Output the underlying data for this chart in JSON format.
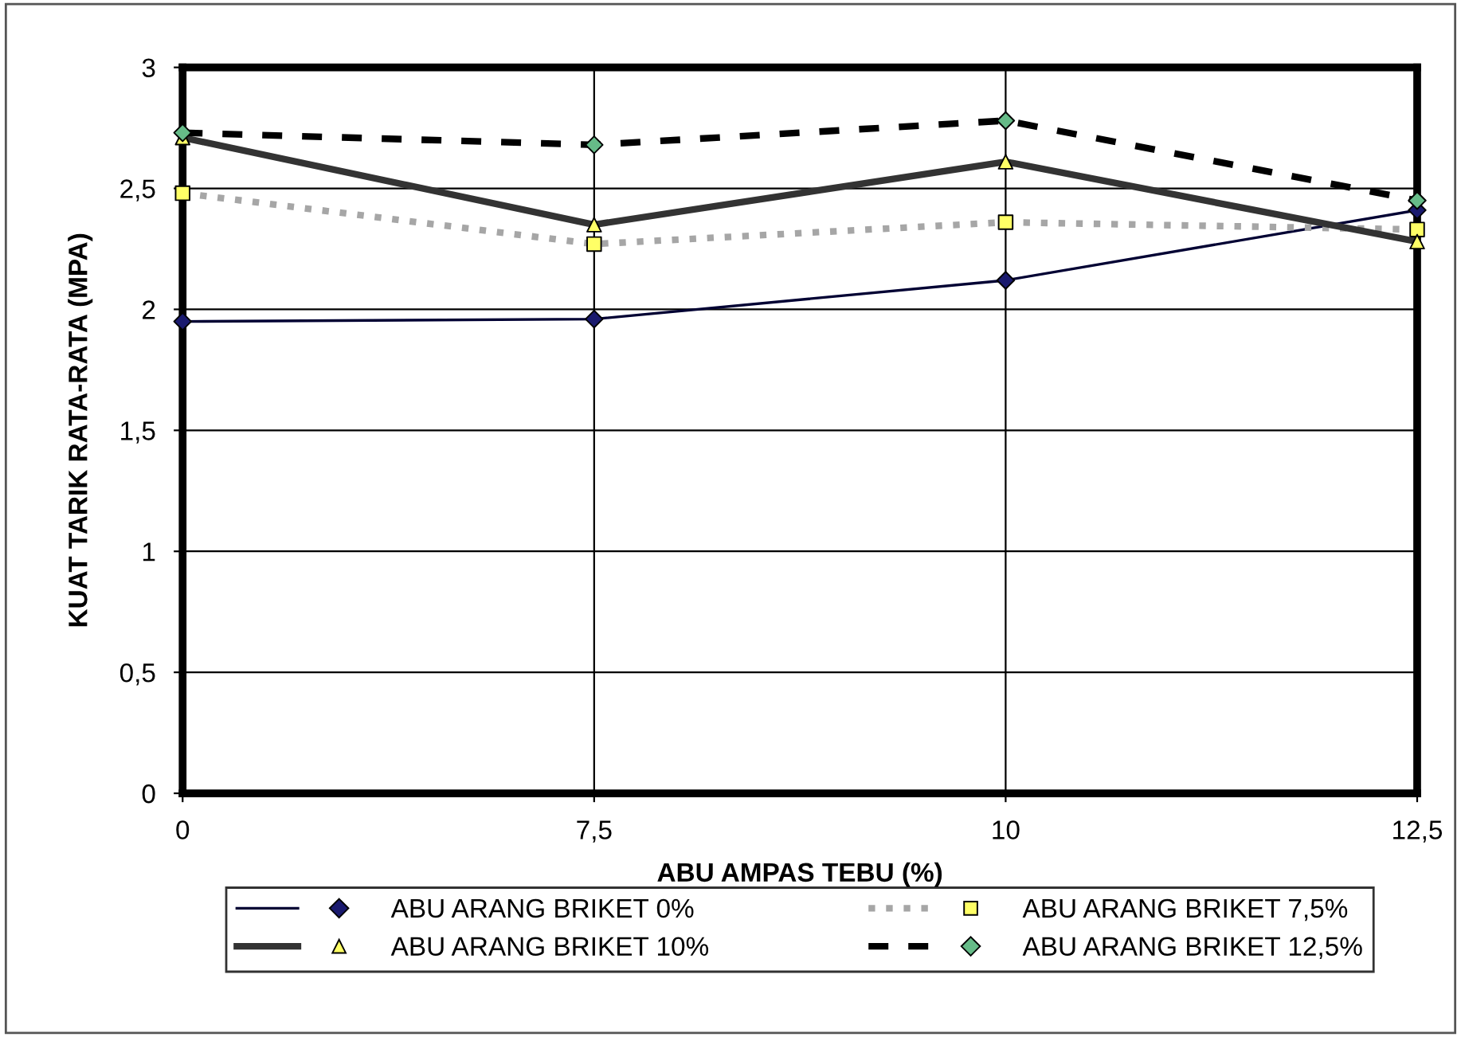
{
  "chart_data": {
    "type": "line",
    "xlabel": "ABU AMPAS TEBU (%)",
    "ylabel": "KUAT TARIK RATA-RATA (MPA)",
    "categories": [
      "0",
      "7,5",
      "10",
      "12,5"
    ],
    "ylim": [
      0,
      3
    ],
    "yticks": [
      0,
      {
        "value": 0.5,
        "label": "0,5"
      },
      1,
      {
        "value": 1.5,
        "label": "1,5"
      },
      2,
      {
        "value": 2.5,
        "label": "2,5"
      },
      3
    ],
    "grid": true,
    "legend": "bottom",
    "series": [
      {
        "name": "ABU ARANG BRIKET 0%",
        "color": "#000033",
        "colors": [
          "#1a1a6e",
          "#1a1a6e",
          "#1a1a6e",
          "#1a1a6e"
        ],
        "marker": "diamond",
        "line_style": "solid",
        "values": [
          1.95,
          1.96,
          2.12,
          2.41
        ]
      },
      {
        "name": "ABU ARANG BRIKET 7,5%",
        "color": "#a6a6a6",
        "colors": [
          "#ffff66",
          "#ffff66",
          "#ffff66",
          "#ffff66"
        ],
        "marker": "square",
        "line_style": "dotted",
        "values": [
          2.48,
          2.27,
          2.36,
          2.33
        ]
      },
      {
        "name": "ABU ARANG BRIKET 10%",
        "color": "#333333",
        "colors": [
          "#ffff66",
          "#ffff66",
          "#ffff66",
          "#ffff66"
        ],
        "marker": "triangle",
        "line_style": "solid",
        "values": [
          2.71,
          2.35,
          2.61,
          2.28
        ]
      },
      {
        "name": "ABU ARANG BRIKET 12,5%",
        "color": "#000000",
        "colors": [
          "#66bb88",
          "#66bb88",
          "#66bb88",
          "#66bb88"
        ],
        "marker": "diamond",
        "line_style": "dashed",
        "values": [
          2.73,
          2.68,
          2.78,
          2.45
        ]
      }
    ]
  }
}
